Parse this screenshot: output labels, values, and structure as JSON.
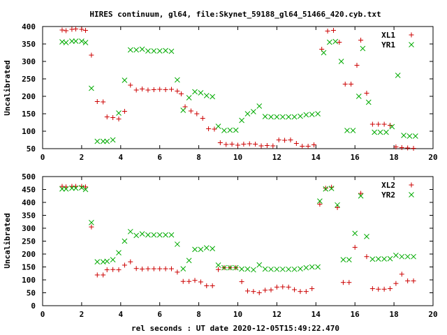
{
  "title": "HIRES continuum, gl64, file:Skynet_59188_gl64_51466_420.cyb.txt",
  "xlabel": "rel seconds : UT date 2020-12-05T15:49:22.470",
  "chart_data": [
    {
      "type": "scatter",
      "ylabel": "Uncalibrated",
      "xlim": [
        0,
        20
      ],
      "ylim": [
        50,
        400
      ],
      "xticks": [
        0,
        2,
        4,
        6,
        8,
        10,
        12,
        14,
        16,
        18,
        20
      ],
      "yticks": [
        50,
        100,
        150,
        200,
        250,
        300,
        350,
        400
      ],
      "grid": false,
      "legend_position": "top-right",
      "series": [
        {
          "name": "XL1",
          "marker": "plus",
          "color": "#cc0000",
          "points": [
            [
              1.0,
              390
            ],
            [
              1.2,
              388
            ],
            [
              1.5,
              392
            ],
            [
              1.7,
              393
            ],
            [
              2.0,
              392
            ],
            [
              2.2,
              389
            ],
            [
              2.5,
              318
            ],
            [
              2.8,
              185
            ],
            [
              3.1,
              184
            ],
            [
              3.3,
              141
            ],
            [
              3.6,
              139
            ],
            [
              3.9,
              135
            ],
            [
              4.2,
              157
            ],
            [
              4.5,
              232
            ],
            [
              4.8,
              218
            ],
            [
              5.1,
              221
            ],
            [
              5.4,
              218
            ],
            [
              5.7,
              219
            ],
            [
              6.0,
              220
            ],
            [
              6.3,
              219
            ],
            [
              6.6,
              220
            ],
            [
              6.9,
              215
            ],
            [
              7.1,
              207
            ],
            [
              7.3,
              170
            ],
            [
              7.6,
              158
            ],
            [
              7.9,
              150
            ],
            [
              8.2,
              137
            ],
            [
              8.5,
              107
            ],
            [
              8.8,
              106
            ],
            [
              9.1,
              67
            ],
            [
              9.4,
              62
            ],
            [
              9.7,
              63
            ],
            [
              10.0,
              60
            ],
            [
              10.3,
              63
            ],
            [
              10.6,
              64
            ],
            [
              10.9,
              63
            ],
            [
              11.2,
              58
            ],
            [
              11.5,
              59
            ],
            [
              11.8,
              58
            ],
            [
              12.1,
              75
            ],
            [
              12.4,
              74
            ],
            [
              12.7,
              75
            ],
            [
              13.0,
              65
            ],
            [
              13.3,
              57
            ],
            [
              13.6,
              57
            ],
            [
              13.9,
              61
            ],
            [
              14.3,
              335
            ],
            [
              14.6,
              387
            ],
            [
              14.9,
              389
            ],
            [
              15.2,
              355
            ],
            [
              15.5,
              235
            ],
            [
              15.8,
              235
            ],
            [
              16.1,
              289
            ],
            [
              16.3,
              361
            ],
            [
              16.6,
              209
            ],
            [
              16.9,
              120
            ],
            [
              17.2,
              120
            ],
            [
              17.5,
              120
            ],
            [
              17.8,
              117
            ],
            [
              18.1,
              55
            ],
            [
              18.4,
              53
            ],
            [
              18.7,
              52
            ],
            [
              19.0,
              51
            ]
          ]
        },
        {
          "name": "YR1",
          "marker": "cross",
          "color": "#00aa00",
          "points": [
            [
              1.0,
              356
            ],
            [
              1.2,
              354
            ],
            [
              1.5,
              358
            ],
            [
              1.7,
              358
            ],
            [
              2.0,
              358
            ],
            [
              2.2,
              354
            ],
            [
              2.5,
              223
            ],
            [
              2.8,
              71
            ],
            [
              3.1,
              71
            ],
            [
              3.3,
              71
            ],
            [
              3.6,
              75
            ],
            [
              3.9,
              152
            ],
            [
              4.2,
              246
            ],
            [
              4.5,
              333
            ],
            [
              4.8,
              333
            ],
            [
              5.1,
              335
            ],
            [
              5.4,
              330
            ],
            [
              5.7,
              330
            ],
            [
              6.0,
              330
            ],
            [
              6.3,
              331
            ],
            [
              6.6,
              329
            ],
            [
              6.9,
              247
            ],
            [
              7.2,
              160
            ],
            [
              7.5,
              196
            ],
            [
              7.8,
              213
            ],
            [
              8.1,
              210
            ],
            [
              8.4,
              202
            ],
            [
              8.7,
              199
            ],
            [
              9.0,
              114
            ],
            [
              9.3,
              102
            ],
            [
              9.6,
              103
            ],
            [
              9.9,
              103
            ],
            [
              10.2,
              131
            ],
            [
              10.5,
              150
            ],
            [
              10.8,
              156
            ],
            [
              11.1,
              172
            ],
            [
              11.4,
              142
            ],
            [
              11.7,
              141
            ],
            [
              12.0,
              141
            ],
            [
              12.3,
              141
            ],
            [
              12.6,
              141
            ],
            [
              12.9,
              141
            ],
            [
              13.2,
              143
            ],
            [
              13.5,
              147
            ],
            [
              13.8,
              148
            ],
            [
              14.1,
              150
            ],
            [
              14.4,
              325
            ],
            [
              14.7,
              355
            ],
            [
              15.0,
              357
            ],
            [
              15.3,
              300
            ],
            [
              15.6,
              102
            ],
            [
              15.9,
              102
            ],
            [
              16.2,
              200
            ],
            [
              16.4,
              337
            ],
            [
              16.7,
              183
            ],
            [
              17.0,
              97
            ],
            [
              17.3,
              97
            ],
            [
              17.6,
              97
            ],
            [
              17.9,
              113
            ],
            [
              18.2,
              260
            ],
            [
              18.5,
              88
            ],
            [
              18.8,
              86
            ],
            [
              19.1,
              86
            ]
          ]
        }
      ]
    },
    {
      "type": "scatter",
      "ylabel": "Uncalibrated",
      "xlim": [
        0,
        20
      ],
      "ylim": [
        0,
        500
      ],
      "xticks": [
        0,
        2,
        4,
        6,
        8,
        10,
        12,
        14,
        16,
        18,
        20
      ],
      "yticks": [
        0,
        50,
        100,
        150,
        200,
        250,
        300,
        350,
        400,
        450,
        500
      ],
      "grid": false,
      "legend_position": "top-right",
      "series": [
        {
          "name": "XL2",
          "marker": "plus",
          "color": "#cc0000",
          "points": [
            [
              1.0,
              462
            ],
            [
              1.2,
              460
            ],
            [
              1.5,
              462
            ],
            [
              1.7,
              462
            ],
            [
              2.0,
              462
            ],
            [
              2.2,
              460
            ],
            [
              2.5,
              305
            ],
            [
              2.8,
              119
            ],
            [
              3.1,
              119
            ],
            [
              3.3,
              139
            ],
            [
              3.6,
              140
            ],
            [
              3.9,
              139
            ],
            [
              4.2,
              157
            ],
            [
              4.5,
              170
            ],
            [
              4.8,
              144
            ],
            [
              5.1,
              142
            ],
            [
              5.4,
              143
            ],
            [
              5.7,
              143
            ],
            [
              6.0,
              143
            ],
            [
              6.3,
              143
            ],
            [
              6.6,
              143
            ],
            [
              6.9,
              130
            ],
            [
              7.2,
              94
            ],
            [
              7.5,
              94
            ],
            [
              7.8,
              98
            ],
            [
              8.1,
              92
            ],
            [
              8.4,
              77
            ],
            [
              8.7,
              77
            ],
            [
              9.0,
              140
            ],
            [
              9.3,
              147
            ],
            [
              9.6,
              147
            ],
            [
              9.9,
              147
            ],
            [
              10.2,
              93
            ],
            [
              10.5,
              57
            ],
            [
              10.8,
              55
            ],
            [
              11.1,
              50
            ],
            [
              11.4,
              60
            ],
            [
              11.7,
              61
            ],
            [
              12.0,
              72
            ],
            [
              12.3,
              73
            ],
            [
              12.6,
              72
            ],
            [
              12.9,
              62
            ],
            [
              13.2,
              55
            ],
            [
              13.5,
              55
            ],
            [
              13.8,
              66
            ],
            [
              14.2,
              393
            ],
            [
              14.5,
              455
            ],
            [
              14.8,
              459
            ],
            [
              15.1,
              380
            ],
            [
              15.4,
              90
            ],
            [
              15.7,
              90
            ],
            [
              16.0,
              226
            ],
            [
              16.3,
              435
            ],
            [
              16.6,
              190
            ],
            [
              16.9,
              66
            ],
            [
              17.2,
              64
            ],
            [
              17.5,
              64
            ],
            [
              17.8,
              66
            ],
            [
              18.1,
              86
            ],
            [
              18.4,
              122
            ],
            [
              18.7,
              96
            ],
            [
              19.0,
              96
            ]
          ]
        },
        {
          "name": "YR2",
          "marker": "cross",
          "color": "#00aa00",
          "points": [
            [
              1.0,
              452
            ],
            [
              1.2,
              452
            ],
            [
              1.5,
              455
            ],
            [
              1.7,
              455
            ],
            [
              2.0,
              457
            ],
            [
              2.2,
              450
            ],
            [
              2.5,
              322
            ],
            [
              2.8,
              170
            ],
            [
              3.1,
              170
            ],
            [
              3.3,
              172
            ],
            [
              3.6,
              178
            ],
            [
              3.9,
              205
            ],
            [
              4.2,
              250
            ],
            [
              4.5,
              287
            ],
            [
              4.8,
              272
            ],
            [
              5.1,
              278
            ],
            [
              5.4,
              274
            ],
            [
              5.7,
              274
            ],
            [
              6.0,
              274
            ],
            [
              6.3,
              274
            ],
            [
              6.6,
              274
            ],
            [
              6.9,
              238
            ],
            [
              7.2,
              143
            ],
            [
              7.5,
              175
            ],
            [
              7.8,
              218
            ],
            [
              8.1,
              218
            ],
            [
              8.4,
              224
            ],
            [
              8.7,
              221
            ],
            [
              9.0,
              157
            ],
            [
              9.3,
              147
            ],
            [
              9.6,
              147
            ],
            [
              9.9,
              147
            ],
            [
              10.2,
              142
            ],
            [
              10.5,
              142
            ],
            [
              10.8,
              139
            ],
            [
              11.1,
              158
            ],
            [
              11.4,
              142
            ],
            [
              11.7,
              141
            ],
            [
              12.0,
              141
            ],
            [
              12.3,
              141
            ],
            [
              12.6,
              141
            ],
            [
              12.9,
              141
            ],
            [
              13.2,
              143
            ],
            [
              13.5,
              147
            ],
            [
              13.8,
              150
            ],
            [
              14.1,
              150
            ],
            [
              14.2,
              405
            ],
            [
              14.5,
              452
            ],
            [
              14.8,
              454
            ],
            [
              15.1,
              390
            ],
            [
              15.4,
              178
            ],
            [
              15.7,
              178
            ],
            [
              16.0,
              280
            ],
            [
              16.3,
              425
            ],
            [
              16.6,
              268
            ],
            [
              16.9,
              180
            ],
            [
              17.2,
              181
            ],
            [
              17.5,
              181
            ],
            [
              17.8,
              182
            ],
            [
              18.1,
              195
            ],
            [
              18.4,
              190
            ],
            [
              18.7,
              190
            ],
            [
              19.0,
              190
            ]
          ]
        }
      ]
    }
  ]
}
